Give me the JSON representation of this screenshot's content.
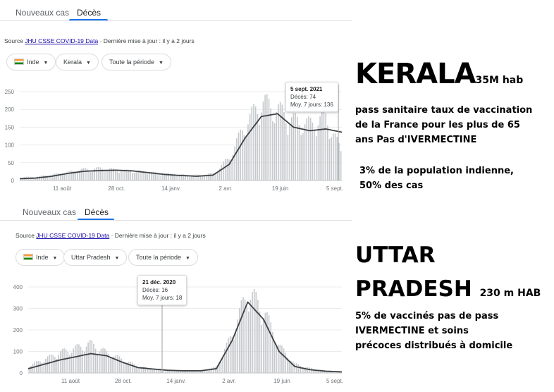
{
  "kerala": {
    "tabs": [
      "Nouveaux cas",
      "Décès"
    ],
    "source_prefix": "Source ",
    "source_link": "JHU CSSE COVID-19 Data",
    "source_suffix": " · Dernière mise à jour : il y a 2 jours",
    "chips": [
      "Inde",
      "Kerala",
      "Toute la période"
    ],
    "tooltip": {
      "date": "5 sept. 2021",
      "deaths": "Décès: 74",
      "avg": "Moy. 7 jours: 136"
    }
  },
  "up": {
    "tabs": [
      "Nouveaux cas",
      "Décès"
    ],
    "source_prefix": "Source ",
    "source_link": "JHU CSSE COVID-19 Data",
    "source_suffix": " · Dernière mise à jour : il y a 2 jours",
    "chips": [
      "Inde",
      "Uttar Pradesh",
      "Toute la période"
    ],
    "tooltip": {
      "date": "21 déc. 2020",
      "deaths": "Décès: 16",
      "avg": "Moy. 7 jours: 18"
    }
  },
  "chart_data": [
    {
      "type": "bar",
      "name": "Kerala",
      "x_ticks": [
        "11 août",
        "28 oct.",
        "14 janv.",
        "2 avr.",
        "19 juin",
        "5 sept."
      ],
      "y_ticks": [
        "250",
        "200",
        "150",
        "100",
        "50",
        "0"
      ],
      "ylim": [
        0,
        250
      ],
      "x": [
        0,
        5,
        10,
        15,
        20,
        25,
        30,
        35,
        40,
        45,
        50,
        55,
        60,
        65,
        70,
        75,
        80,
        85,
        90,
        95,
        100
      ],
      "moving_avg": [
        5,
        7,
        12,
        20,
        26,
        28,
        29,
        27,
        22,
        17,
        14,
        12,
        15,
        45,
        120,
        180,
        188,
        150,
        140,
        145,
        136
      ],
      "deaths": [
        8,
        10,
        15,
        22,
        30,
        32,
        28,
        25,
        22,
        18,
        15,
        14,
        18,
        60,
        150,
        210,
        190,
        160,
        150,
        170,
        74
      ]
    },
    {
      "type": "bar",
      "name": "Uttar Pradesh",
      "x_ticks": [
        "11 août",
        "28 oct.",
        "14 janv.",
        "2 avr.",
        "19 juin",
        "5 sept."
      ],
      "y_ticks": [
        "400",
        "300",
        "200",
        "100",
        "0"
      ],
      "ylim": [
        0,
        400
      ],
      "x": [
        0,
        5,
        10,
        15,
        20,
        25,
        30,
        35,
        40,
        45,
        50,
        55,
        60,
        65,
        70,
        75,
        80,
        85,
        90,
        95,
        100
      ],
      "moving_avg": [
        20,
        40,
        60,
        75,
        90,
        80,
        50,
        25,
        18,
        12,
        10,
        10,
        20,
        150,
        330,
        250,
        100,
        30,
        15,
        8,
        5
      ],
      "deaths": [
        30,
        60,
        90,
        110,
        130,
        90,
        60,
        30,
        16,
        15,
        12,
        12,
        25,
        170,
        360,
        280,
        120,
        40,
        20,
        10,
        5
      ]
    }
  ],
  "right": {
    "kerala_title": "KERALA",
    "kerala_pop": "35M hab",
    "kerala_line1": "pass sanitaire  taux de vaccination",
    "kerala_line2": "de la France pour les plus de 65",
    "kerala_line3": "ans  Pas d'IVERMECTINE",
    "kerala_share1": "3% de la population indienne,",
    "kerala_share2": "50% des cas",
    "up_title1": "UTTAR",
    "up_title2": "PRADESH",
    "up_pop": "230 m HAB",
    "up_line1": "5% de vaccinés pas de pass",
    "up_line2": "IVERMECTINE  et soins",
    "up_line3": "précoces distribués à domicile"
  }
}
